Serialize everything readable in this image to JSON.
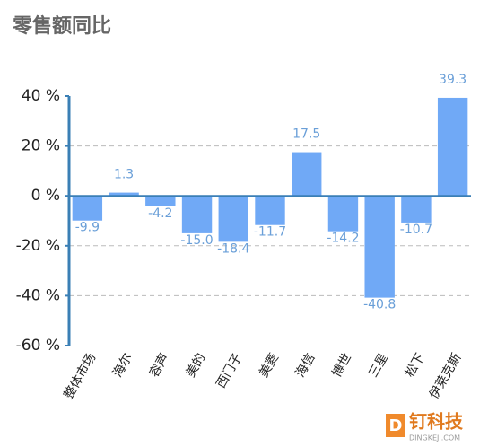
{
  "chart_data": {
    "type": "bar",
    "title": "零售额同比",
    "categories": [
      "整体市场",
      "海尔",
      "容声",
      "美的",
      "西门子",
      "美菱",
      "海信",
      "博世",
      "三星",
      "松下",
      "伊莱克斯"
    ],
    "values": [
      -9.9,
      1.3,
      -4.2,
      -15.0,
      -18.4,
      -11.7,
      17.5,
      -14.2,
      -40.8,
      -10.7,
      39.3
    ],
    "value_labels": [
      "-9.9",
      "1.3",
      "-4.2",
      "-15.0",
      "-18.4",
      "-11.7",
      "17.5",
      "-14.2",
      "-40.8",
      "-10.7",
      "39.3"
    ],
    "color": "#70a9f6",
    "ylim": [
      -60,
      40
    ],
    "yticks": [
      {
        "value": -60,
        "label": "-60 %"
      },
      {
        "value": -40,
        "label": "-40 %"
      },
      {
        "value": -20,
        "label": "-20 %"
      },
      {
        "value": 0,
        "label": "0 %"
      },
      {
        "value": 20,
        "label": "20 %"
      },
      {
        "value": 40,
        "label": "40 %"
      }
    ],
    "grid": true
  },
  "watermark": {
    "brand": "钉科技",
    "site": "DINGKEJI.COM"
  }
}
